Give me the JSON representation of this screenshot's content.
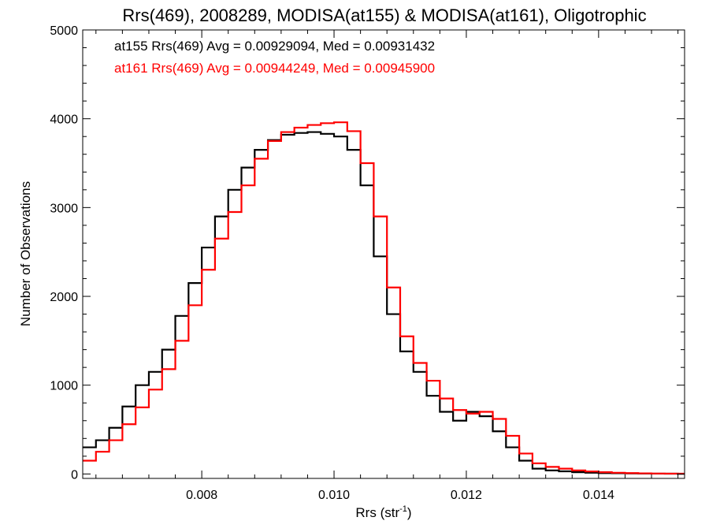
{
  "chart_data": {
    "type": "line",
    "title": "Rrs(469), 2008289, MODISA(at155) & MODISA(at161), Oligotrophic",
    "xlabel": "Rrs (str",
    "xlabel_sup": "-1",
    "xlabel_close": ")",
    "ylabel": "Number of Observations",
    "xlim": [
      0.0062,
      0.0153
    ],
    "ylim": [
      -50,
      5000
    ],
    "xticks": [
      0.008,
      0.01,
      0.012,
      0.014
    ],
    "xtick_labels": [
      "0.008",
      "0.010",
      "0.012",
      "0.014"
    ],
    "yticks": [
      0,
      1000,
      2000,
      3000,
      4000,
      5000
    ],
    "ytick_labels": [
      "0",
      "1000",
      "2000",
      "3000",
      "4000",
      "5000"
    ],
    "grid": false,
    "step": true,
    "x": [
      0.0062,
      0.0064,
      0.0066,
      0.0068,
      0.007,
      0.0072,
      0.0074,
      0.0076,
      0.0078,
      0.008,
      0.0082,
      0.0084,
      0.0086,
      0.0088,
      0.009,
      0.0092,
      0.0094,
      0.0096,
      0.0098,
      0.01,
      0.0102,
      0.0104,
      0.0106,
      0.0108,
      0.011,
      0.0112,
      0.0114,
      0.0116,
      0.0118,
      0.012,
      0.0122,
      0.0124,
      0.0126,
      0.0128,
      0.013,
      0.0132,
      0.0134,
      0.0136,
      0.0138,
      0.014,
      0.0142,
      0.0144,
      0.0146,
      0.0148,
      0.015,
      0.0152
    ],
    "series": [
      {
        "name": "at155",
        "color": "#000000",
        "legend_text": "at155 Rrs(469) Avg = 0.00929094, Med = 0.00931432",
        "values": [
          300,
          380,
          520,
          760,
          1000,
          1150,
          1400,
          1780,
          2150,
          2550,
          2900,
          3200,
          3450,
          3650,
          3760,
          3820,
          3840,
          3850,
          3830,
          3800,
          3650,
          3250,
          2450,
          1800,
          1380,
          1150,
          880,
          700,
          600,
          700,
          650,
          480,
          300,
          150,
          60,
          40,
          30,
          20,
          14,
          10,
          8,
          6,
          5,
          4,
          3,
          2
        ]
      },
      {
        "name": "at161",
        "color": "#ff0000",
        "legend_text": "at161 Rrs(469) Avg = 0.00944249, Med = 0.00945900",
        "values": [
          150,
          250,
          380,
          560,
          750,
          950,
          1180,
          1500,
          1900,
          2300,
          2650,
          2950,
          3250,
          3550,
          3750,
          3850,
          3900,
          3930,
          3950,
          3960,
          3860,
          3500,
          2900,
          2100,
          1550,
          1250,
          1050,
          850,
          720,
          680,
          700,
          620,
          430,
          230,
          120,
          80,
          60,
          40,
          28,
          20,
          14,
          10,
          7,
          5,
          4,
          3
        ]
      }
    ]
  }
}
